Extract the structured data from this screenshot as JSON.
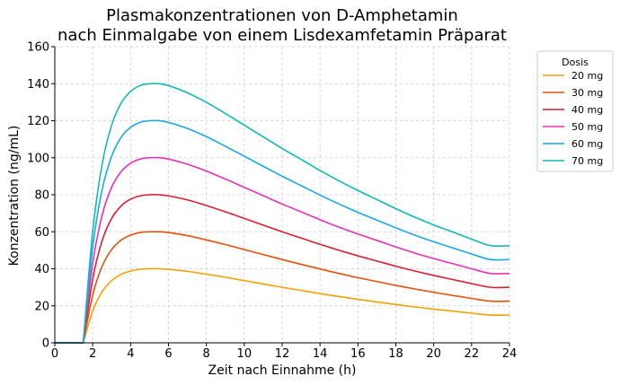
{
  "chart_data": {
    "type": "line",
    "title": [
      "Plasmakonzentrationen von D-Amphetamin",
      "nach Einmalgabe von einem Lisdexamfetamin Präparat"
    ],
    "xlabel": "Zeit nach Einnahme (h)",
    "ylabel": "Konzentration (ng/mL)",
    "xlim": [
      0,
      24
    ],
    "ylim": [
      0,
      160
    ],
    "xticks": [
      0,
      2,
      4,
      6,
      8,
      10,
      12,
      14,
      16,
      18,
      20,
      22,
      24
    ],
    "yticks": [
      0,
      20,
      40,
      60,
      80,
      100,
      120,
      140,
      160
    ],
    "grid": true,
    "legend": {
      "title": "Dosis",
      "placement": "outside-top-right"
    },
    "x": [
      0,
      1.5,
      2,
      2.5,
      3,
      3.5,
      4,
      4.5,
      5,
      5.5,
      6,
      7,
      8,
      9,
      10,
      11,
      12,
      13,
      14,
      15,
      16,
      17,
      18,
      19,
      20,
      21,
      22,
      23,
      24
    ],
    "series": [
      {
        "name": "20 mg",
        "color": "#f5a000",
        "values": [
          0,
          0,
          17.2,
          27.6,
          33.6,
          37.0,
          38.8,
          39.7,
          40.0,
          40.0,
          39.7,
          38.6,
          37.1,
          35.4,
          33.6,
          31.8,
          30.0,
          28.3,
          26.6,
          25.0,
          23.5,
          22.1,
          20.7,
          19.4,
          18.2,
          17.1,
          16.0,
          15.0,
          15.0
        ]
      },
      {
        "name": "30 mg",
        "color": "#e8500a",
        "values": [
          0,
          0,
          25.8,
          41.4,
          50.4,
          55.5,
          58.2,
          59.6,
          60.0,
          60.0,
          59.6,
          57.9,
          55.6,
          53.1,
          50.4,
          47.7,
          45.0,
          42.4,
          39.9,
          37.5,
          35.2,
          33.1,
          31.0,
          29.1,
          27.3,
          25.6,
          24.0,
          22.5,
          22.5
        ]
      },
      {
        "name": "40 mg",
        "color": "#dc1e32",
        "values": [
          0,
          0,
          34.4,
          55.2,
          67.2,
          74.0,
          77.6,
          79.4,
          80.0,
          80.0,
          79.4,
          77.2,
          74.2,
          70.8,
          67.2,
          63.6,
          60.0,
          56.6,
          53.2,
          50.0,
          47.0,
          44.2,
          41.4,
          38.8,
          36.4,
          34.2,
          32.0,
          30.0,
          30.0
        ]
      },
      {
        "name": "50 mg",
        "color": "#e830b8",
        "values": [
          0,
          0,
          43.0,
          69.0,
          84.0,
          92.5,
          97.0,
          99.3,
          100.0,
          100.0,
          99.3,
          96.5,
          92.8,
          88.5,
          84.0,
          79.5,
          75.0,
          70.8,
          66.5,
          62.5,
          58.8,
          55.3,
          51.8,
          48.5,
          45.5,
          42.8,
          40.0,
          37.5,
          37.5
        ]
      },
      {
        "name": "60 mg",
        "color": "#1aa8e8",
        "values": [
          0,
          0,
          51.6,
          82.8,
          100.8,
          111.0,
          116.4,
          119.1,
          120.0,
          120.0,
          119.1,
          115.8,
          111.4,
          106.2,
          100.8,
          95.4,
          90.0,
          84.9,
          79.8,
          75.0,
          70.5,
          66.3,
          62.1,
          58.2,
          54.6,
          51.3,
          48.0,
          45.0,
          45.0
        ]
      },
      {
        "name": "70 mg",
        "color": "#10b8b8",
        "values": [
          0,
          0,
          60.2,
          96.6,
          117.6,
          129.5,
          135.8,
          139.0,
          140.0,
          140.0,
          139.0,
          135.1,
          129.9,
          123.9,
          117.6,
          111.3,
          105.0,
          99.1,
          93.1,
          87.5,
          82.3,
          77.4,
          72.5,
          67.9,
          63.7,
          59.9,
          56.0,
          52.5,
          52.5
        ]
      }
    ]
  }
}
